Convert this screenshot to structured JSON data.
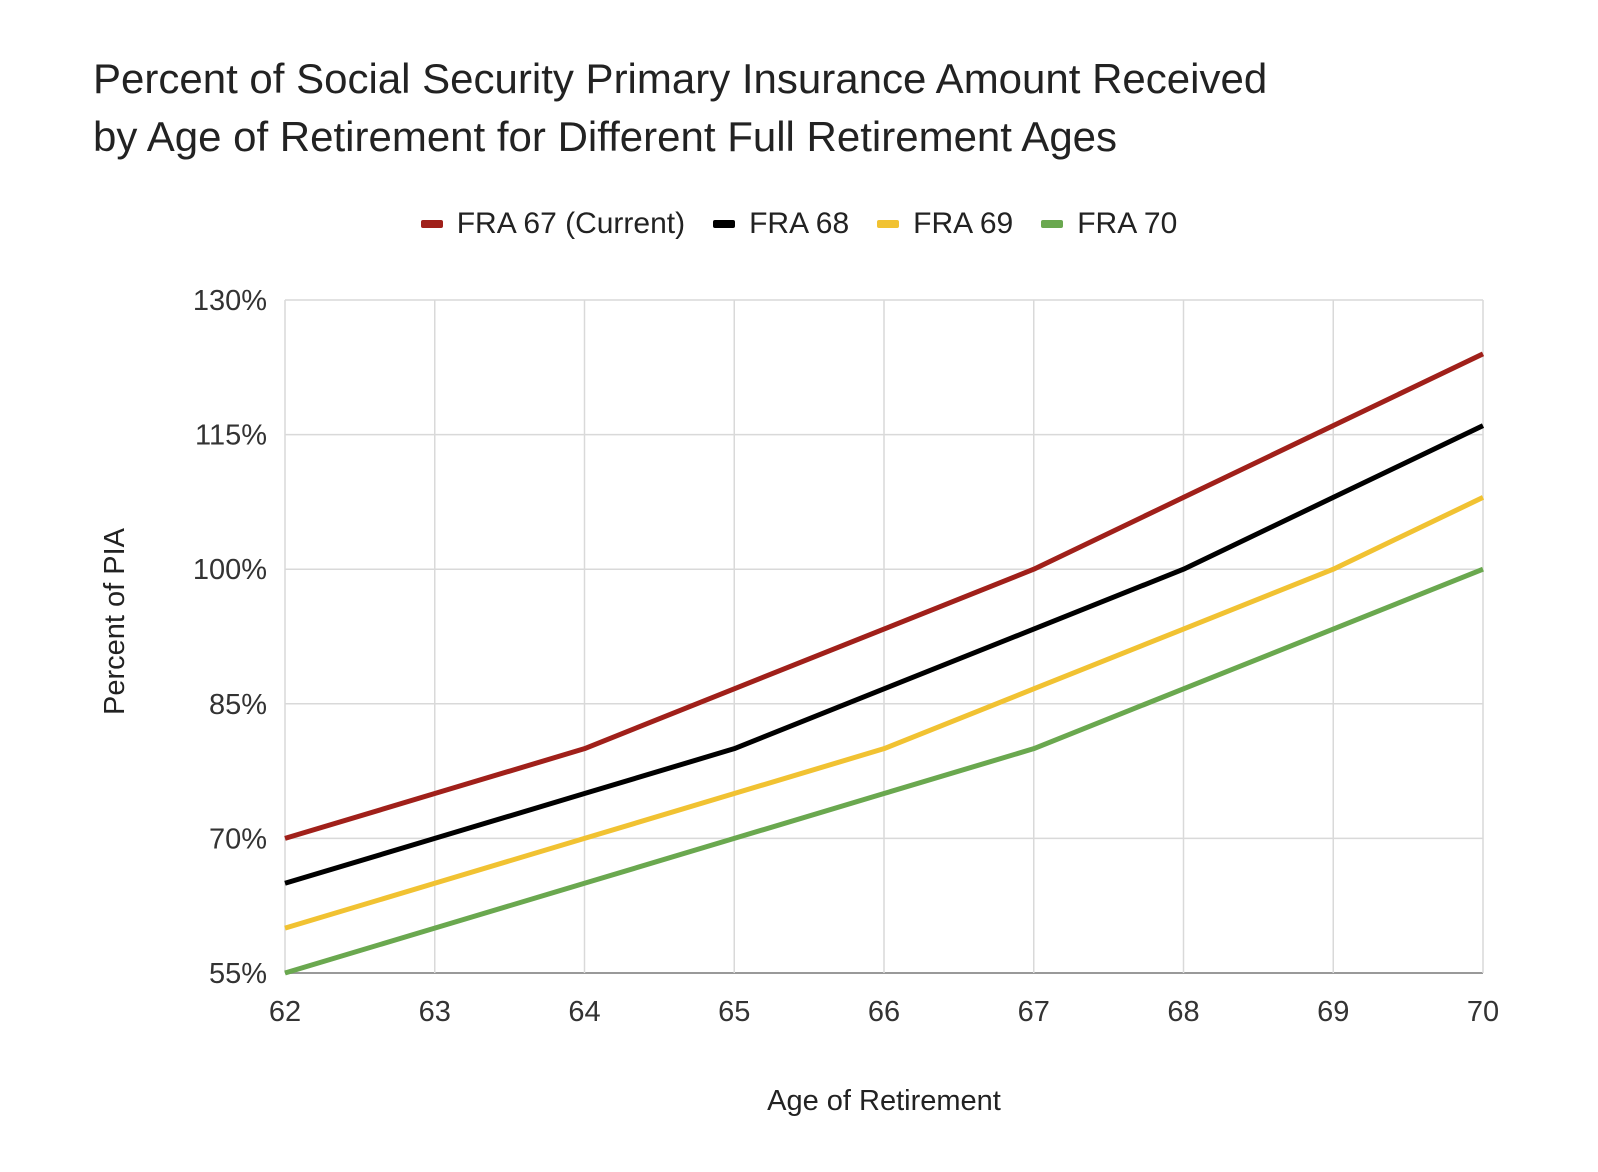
{
  "chart_data": {
    "type": "line",
    "title": "Percent of Social Security Primary Insurance Amount Received by Age of Retirement for Different Full Retirement Ages",
    "title_lines": [
      "Percent of Social Security Primary Insurance Amount Received",
      "by Age of Retirement for Different Full Retirement Ages"
    ],
    "xlabel": "Age of Retirement",
    "ylabel": "Percent of PIA",
    "x": [
      62,
      63,
      64,
      65,
      66,
      67,
      68,
      69,
      70
    ],
    "xlim": [
      62,
      70
    ],
    "ylim": [
      55,
      130
    ],
    "yticks": [
      55,
      70,
      85,
      100,
      115,
      130
    ],
    "ytick_labels": [
      "55%",
      "70%",
      "85%",
      "100%",
      "115%",
      "130%"
    ],
    "xtick_labels": [
      "62",
      "63",
      "64",
      "65",
      "66",
      "67",
      "68",
      "69",
      "70"
    ],
    "grid": true,
    "legend_position": "top",
    "series": [
      {
        "name": "FRA 67 (Current)",
        "color": "#a0201a",
        "values": [
          70,
          75,
          80,
          86.67,
          93.33,
          100,
          108,
          116,
          124
        ]
      },
      {
        "name": "FRA 68",
        "color": "#000000",
        "values": [
          65,
          70,
          75,
          80,
          86.67,
          93.33,
          100,
          108,
          116
        ]
      },
      {
        "name": "FRA 69",
        "color": "#f1c232",
        "values": [
          60,
          65,
          70,
          75,
          80,
          86.67,
          93.33,
          100,
          108
        ]
      },
      {
        "name": "FRA 70",
        "color": "#6aa84f",
        "values": [
          55,
          60,
          65,
          70,
          75,
          80,
          86.67,
          93.33,
          100
        ]
      }
    ]
  }
}
